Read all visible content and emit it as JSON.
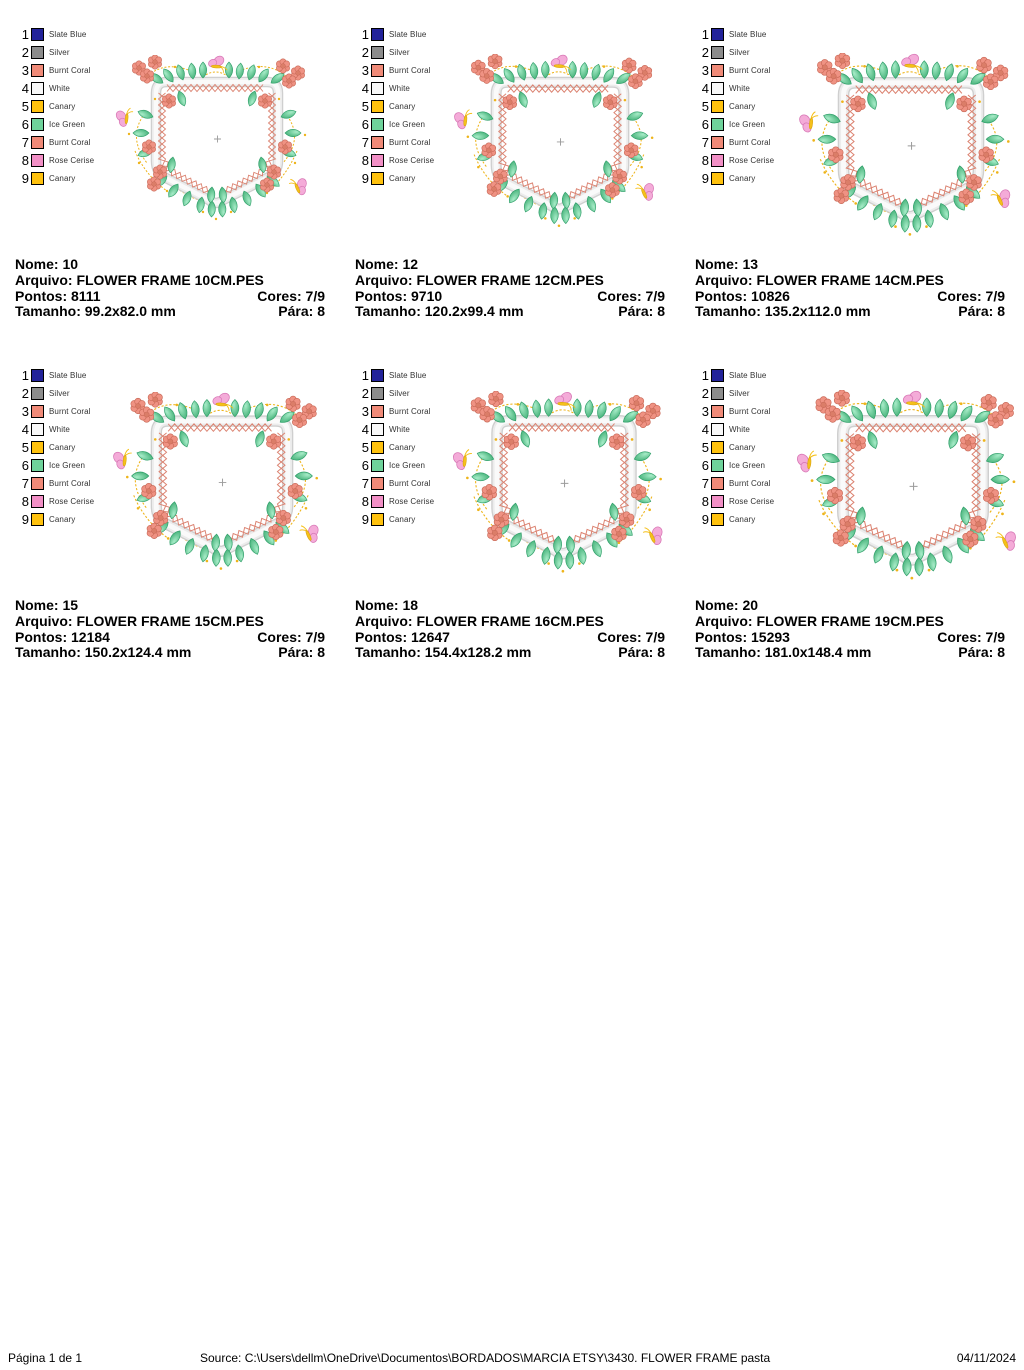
{
  "labels": {
    "nome": "Nome:",
    "arquivo": "Arquivo:",
    "pontos": "Pontos:",
    "cores": "Cores:",
    "tamanho": "Tamanho:",
    "para": "Pára:"
  },
  "thread_legend": [
    {
      "index": "1",
      "name": "Slate Blue",
      "hex": "#22229a"
    },
    {
      "index": "2",
      "name": "Silver",
      "hex": "#8c8c8c"
    },
    {
      "index": "3",
      "name": "Burnt Coral",
      "hex": "#f08a78"
    },
    {
      "index": "4",
      "name": "White",
      "hex": "#f8f8f8"
    },
    {
      "index": "5",
      "name": "Canary",
      "hex": "#ffc20e"
    },
    {
      "index": "6",
      "name": "Ice Green",
      "hex": "#6fd39b"
    },
    {
      "index": "7",
      "name": "Burnt Coral",
      "hex": "#f08a78"
    },
    {
      "index": "8",
      "name": "Rose Cerise",
      "hex": "#f28fc6"
    },
    {
      "index": "9",
      "name": "Canary",
      "hex": "#ffc20e"
    }
  ],
  "designs": [
    {
      "nome": "10",
      "arquivo": "FLOWER FRAME 10CM.PES",
      "pontos": "8111",
      "cores": "7/9",
      "tamanho": "99.2x82.0 mm",
      "para": "8"
    },
    {
      "nome": "12",
      "arquivo": "FLOWER FRAME 12CM.PES",
      "pontos": "9710",
      "cores": "7/9",
      "tamanho": "120.2x99.4 mm",
      "para": "8"
    },
    {
      "nome": "13",
      "arquivo": "FLOWER FRAME 14CM.PES",
      "pontos": "10826",
      "cores": "7/9",
      "tamanho": "135.2x112.0 mm",
      "para": "8"
    },
    {
      "nome": "15",
      "arquivo": "FLOWER FRAME 15CM.PES",
      "pontos": "12184",
      "cores": "7/9",
      "tamanho": "150.2x124.4 mm",
      "para": "8"
    },
    {
      "nome": "18",
      "arquivo": "FLOWER FRAME 16CM.PES",
      "pontos": "12647",
      "cores": "7/9",
      "tamanho": "154.4x128.2 mm",
      "para": "8"
    },
    {
      "nome": "20",
      "arquivo": "FLOWER FRAME 19CM.PES",
      "pontos": "15293",
      "cores": "7/9",
      "tamanho": "181.0x148.4 mm",
      "para": "8"
    }
  ],
  "motif_colors": {
    "ribbon_edge": "#cfcfcf",
    "ribbon_mid": "#ececec",
    "ribbon_light": "#fafafa",
    "zigzag": "#db8270",
    "leaf_light": "#a7ecc8",
    "leaf_dark": "#3fae74",
    "leaf_stroke": "#2f9e69",
    "flower_petal": "#ef9283",
    "flower_stroke": "#c96a58",
    "flower_center": "#db7d68",
    "vine": "#eeb41a",
    "butterfly_wing": "#f4abd8",
    "butterfly_stroke": "#d878b6",
    "butterfly_body": "#f5c01a",
    "center_mark": "#9b9b9b"
  },
  "footer": {
    "page_label": "Página 1 de 1",
    "source": "Source:  C:\\Users\\dellm\\OneDrive\\Documentos\\BORDADOS\\MARCIA ETSY\\3430. FLOWER FRAME pasta",
    "date": "04/11/2024"
  }
}
